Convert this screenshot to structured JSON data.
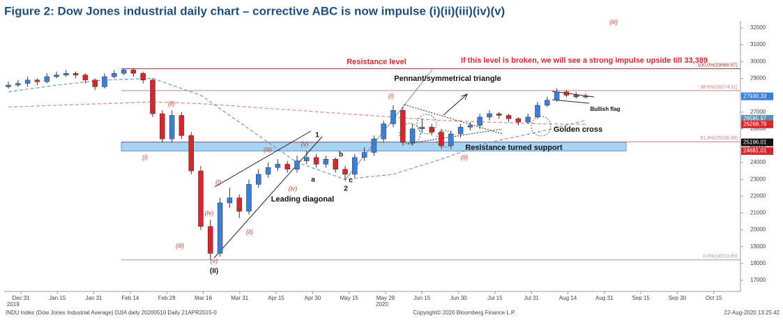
{
  "chart_data": {
    "type": "candlestick",
    "title": "Figure 2: Dow Jones industrial daily chart – corrective ABC is now impulse (i)(ii)(iii)(iv)(v)",
    "up_color": "#3a7fd5",
    "down_color": "#d8262c",
    "ylim": [
      16500,
      32500
    ],
    "yticks": [
      17000,
      18000,
      19000,
      20000,
      21000,
      22000,
      23000,
      24000,
      25000,
      26000,
      27000,
      28000,
      29000,
      30000,
      31000,
      32000
    ],
    "xticks": [
      "Dec 31",
      "Jan 15",
      "Jan 31",
      "Feb 14",
      "Feb 28",
      "Mar 16",
      "Mar 31",
      "Apr 15",
      "Apr 30",
      "May 15",
      "May 29",
      "Jun 15",
      "Jun 30",
      "Jul 15",
      "Jul 31",
      "Aug 14",
      "Aug 31",
      "Sep 15",
      "Sep 30",
      "Oct 15"
    ],
    "years": [
      "2019",
      "2020"
    ],
    "candles": [
      [
        28500,
        28800,
        28400,
        28600
      ],
      [
        28600,
        28900,
        28500,
        28700
      ],
      [
        28700,
        29100,
        28500,
        28900
      ],
      [
        28900,
        29000,
        28600,
        28800
      ],
      [
        28800,
        29300,
        28700,
        29100
      ],
      [
        29100,
        29400,
        29000,
        29200
      ],
      [
        29200,
        29500,
        29100,
        29300
      ],
      [
        29300,
        29400,
        29000,
        29200
      ],
      [
        29200,
        29300,
        28700,
        28900
      ],
      [
        28900,
        29000,
        28300,
        28500
      ],
      [
        28500,
        29300,
        28400,
        29100
      ],
      [
        29100,
        29500,
        29000,
        29300
      ],
      [
        29300,
        29600,
        29200,
        29500
      ],
      [
        29500,
        29600,
        29100,
        29300
      ],
      [
        29300,
        29400,
        28700,
        28900
      ],
      [
        28900,
        29000,
        26700,
        26900
      ],
      [
        26900,
        27100,
        25200,
        25400
      ],
      [
        25400,
        27100,
        25200,
        26800
      ],
      [
        26800,
        27000,
        25400,
        25600
      ],
      [
        25600,
        25800,
        23300,
        23500
      ],
      [
        23500,
        23800,
        20000,
        20200
      ],
      [
        20200,
        20600,
        18200,
        18600
      ],
      [
        18600,
        21900,
        18400,
        21600
      ],
      [
        21600,
        22500,
        21300,
        21900
      ],
      [
        21900,
        22100,
        20700,
        21100
      ],
      [
        21100,
        23000,
        20900,
        22700
      ],
      [
        22700,
        23600,
        22500,
        23300
      ],
      [
        23300,
        24000,
        23100,
        23700
      ],
      [
        23700,
        24200,
        23500,
        23900
      ],
      [
        23900,
        24100,
        23400,
        23600
      ],
      [
        23600,
        24400,
        23400,
        24100
      ],
      [
        24100,
        24700,
        23900,
        24300
      ],
      [
        24300,
        24500,
        23700,
        23900
      ],
      [
        23900,
        24400,
        23700,
        24200
      ],
      [
        24200,
        24300,
        23400,
        23600
      ],
      [
        23600,
        23800,
        22900,
        23300
      ],
      [
        23300,
        24500,
        23100,
        24300
      ],
      [
        24300,
        24900,
        24100,
        24600
      ],
      [
        24600,
        25600,
        24400,
        25400
      ],
      [
        25400,
        26500,
        25200,
        26300
      ],
      [
        26300,
        27400,
        26100,
        27100
      ],
      [
        27100,
        27300,
        25000,
        25200
      ],
      [
        25200,
        26300,
        25000,
        26000
      ],
      [
        26000,
        26600,
        25800,
        26100
      ],
      [
        26100,
        26300,
        25600,
        25800
      ],
      [
        25800,
        26000,
        24800,
        25000
      ],
      [
        25000,
        25900,
        24800,
        25700
      ],
      [
        25700,
        26300,
        25500,
        26100
      ],
      [
        26100,
        26400,
        25900,
        26200
      ],
      [
        26200,
        26900,
        26000,
        26700
      ],
      [
        26700,
        27100,
        26500,
        26900
      ],
      [
        26900,
        27000,
        26600,
        26800
      ],
      [
        26800,
        26900,
        26400,
        26600
      ],
      [
        26600,
        26700,
        26200,
        26400
      ],
      [
        26400,
        26900,
        26300,
        26700
      ],
      [
        26700,
        27600,
        26600,
        27400
      ],
      [
        27400,
        27900,
        27300,
        27700
      ],
      [
        27700,
        28400,
        27600,
        28200
      ],
      [
        28200,
        28300,
        27900,
        28000
      ],
      [
        28000,
        28200,
        27800,
        27900
      ],
      [
        27900,
        28100,
        27800,
        27930
      ]
    ],
    "moving_averages": [
      {
        "color": "#7f97a8",
        "values": [
          28200,
          28600,
          28900,
          29000,
          28000,
          26000,
          24000,
          23000,
          23300,
          24200,
          25200,
          25800,
          26500
        ]
      },
      {
        "color": "#d98a8a",
        "values": [
          27300,
          27400,
          27500,
          27600,
          27500,
          27300,
          27100,
          26900,
          26700,
          26500,
          26400,
          26300,
          26270
        ]
      }
    ],
    "levels": [
      {
        "value": 29568.57,
        "label": "100.0%(29568.57)",
        "color": "#a03030"
      },
      {
        "value": 28274.11,
        "label": "88.6%(28274.11)",
        "color": "#d08080"
      },
      {
        "value": 25230.99,
        "label": "61.8%(25230.99)",
        "color": "#d08080"
      },
      {
        "value": 18213.65,
        "label": "0.0%(18213.65)",
        "color": "#999999"
      }
    ],
    "support_band": [
      24681.01,
      25196.01
    ],
    "price_labels": [
      {
        "value": 27930.33,
        "color": "#3a7fd5"
      },
      {
        "value": 26595.97,
        "color": "#5a8fb0"
      },
      {
        "value": 26268.79,
        "color": "#d8262c"
      },
      {
        "value": 25196.01,
        "color": "#111111"
      },
      {
        "value": 24681.01,
        "color": "#d8262c"
      }
    ],
    "annotations": [
      {
        "text": "Resistance level",
        "color": "#d8262c"
      },
      {
        "text": "If this level is broken, we will see a strong impulse upside till 33,389",
        "color": "#d8262c"
      },
      {
        "text": "Pennant/symmetrical triangle",
        "color": "#111111"
      },
      {
        "text": "Bullish flag",
        "color": "#111111"
      },
      {
        "text": "Golden cross",
        "color": "#111111"
      },
      {
        "text": "Resistance turned support",
        "color": "#111111"
      },
      {
        "text": "Leading diagonal",
        "color": "#111111"
      },
      {
        "text": "(i)",
        "color": "#c0392b"
      },
      {
        "text": "(ii)",
        "color": "#c0392b"
      },
      {
        "text": "(iii)",
        "color": "#c0392b"
      },
      {
        "text": "(iv)",
        "color": "#c0392b"
      },
      {
        "text": "(v)",
        "color": "#c0392b"
      },
      {
        "text": "(II)",
        "color": "#111111"
      },
      {
        "text": "(i)",
        "color": "#c0392b"
      },
      {
        "text": "(ii)",
        "color": "#c0392b"
      },
      {
        "text": "(iii)",
        "color": "#c0392b"
      },
      {
        "text": "(iv)",
        "color": "#c0392b"
      },
      {
        "text": "(v)",
        "color": "#c0392b"
      },
      {
        "text": "1",
        "color": "#111111"
      },
      {
        "text": "a",
        "color": "#111111"
      },
      {
        "text": "b",
        "color": "#111111"
      },
      {
        "text": "c",
        "color": "#111111"
      },
      {
        "text": "2",
        "color": "#111111"
      },
      {
        "text": "(i)",
        "color": "#c0392b"
      },
      {
        "text": "(ii)",
        "color": "#c0392b"
      },
      {
        "text": "(iii)",
        "color": "#c0392b"
      }
    ],
    "footer": [
      "INDU Index (Dow Jones Industrial Average) DJIA daily 20200510  Daily 21APR2015-0",
      "Copyright© 2020 Bloomberg Finance L.P.",
      "22-Aug-2020 13:25:42"
    ]
  }
}
